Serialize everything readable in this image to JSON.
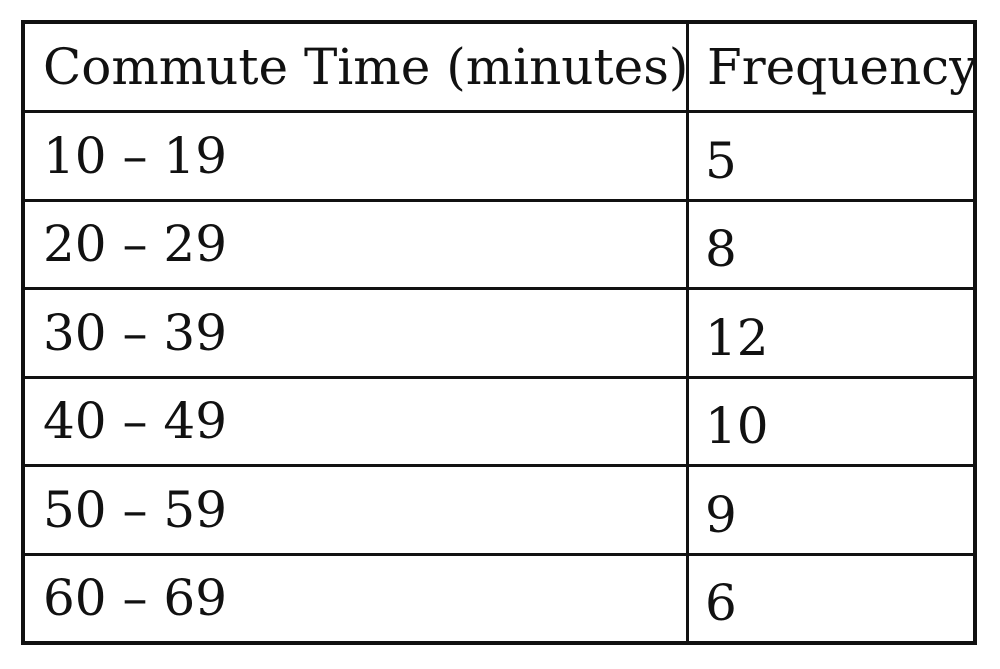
{
  "table": {
    "headers": [
      "Commute Time (minutes)",
      "Frequency"
    ],
    "rows": [
      [
        "10 – 19",
        "5"
      ],
      [
        "20 – 29",
        "8"
      ],
      [
        "30 – 39",
        "12"
      ],
      [
        "40 – 49",
        "10"
      ],
      [
        "50 – 59",
        "9"
      ],
      [
        "60 – 69",
        "6"
      ]
    ]
  }
}
